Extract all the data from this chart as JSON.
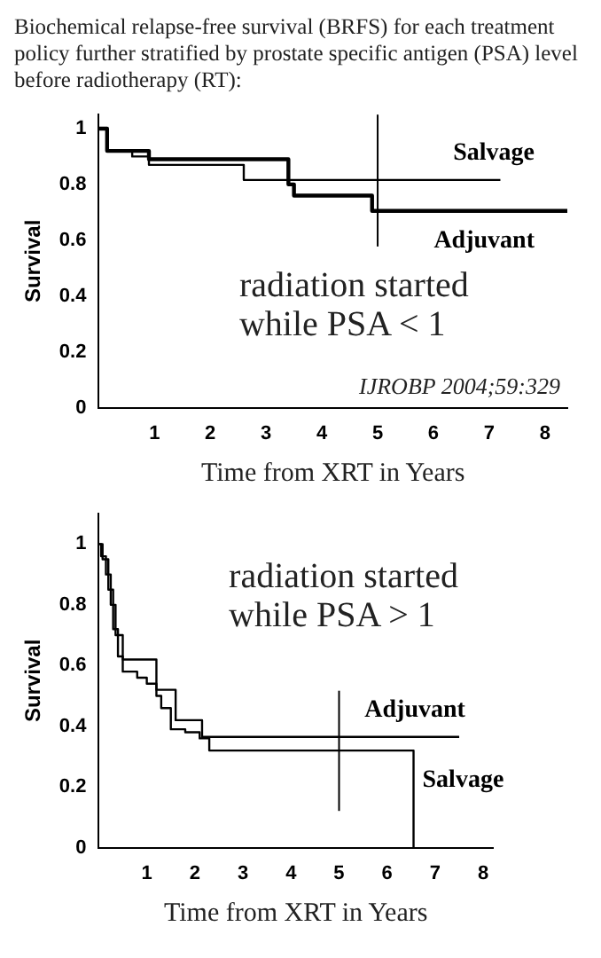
{
  "chart_data": [
    {
      "type": "step",
      "title": "Biochemical relapse-free survival (BRFS) for each treatment policy further stratified by prostate specific antigen (PSA) level before radiotherapy (RT):",
      "xlabel": "Time from XRT in Years",
      "ylabel": "Survival",
      "xlim": [
        0,
        8.4
      ],
      "ylim": [
        0,
        1.05
      ],
      "xticks": [
        1,
        2,
        3,
        4,
        5,
        6,
        7,
        8
      ],
      "yticks": [
        0,
        0.2,
        0.4,
        0.6,
        0.8,
        1
      ],
      "grid": false,
      "legend": false,
      "marker": "none",
      "series": [
        {
          "name": "Salvage",
          "color": "#000000",
          "x": [
            0,
            0.15,
            0.6,
            0.9,
            2.6,
            7.2
          ],
          "values": [
            1,
            0.92,
            0.9,
            0.87,
            0.816,
            0.816
          ]
        },
        {
          "name": "Adjuvant",
          "color": "#000000",
          "x": [
            0,
            0.15,
            0.9,
            3.4,
            3.5,
            4.9,
            8.4
          ],
          "values": [
            1,
            0.92,
            0.89,
            0.8,
            0.76,
            0.705,
            0.705
          ]
        }
      ],
      "ref_lines": [
        {
          "axis": "x",
          "value": 5,
          "color": "#000000"
        }
      ],
      "annotations": [
        "radiation started\nwhile PSA < 1",
        "IJROBP 2004;59:329"
      ]
    },
    {
      "type": "step",
      "xlabel": "Time from XRT in Years",
      "ylabel": "Survival",
      "xlim": [
        0,
        8.2
      ],
      "ylim": [
        0,
        1.1
      ],
      "xticks": [
        1,
        2,
        3,
        4,
        5,
        6,
        7,
        8
      ],
      "yticks": [
        0,
        0.2,
        0.4,
        0.6,
        0.8,
        1
      ],
      "grid": false,
      "legend": false,
      "marker": "none",
      "series": [
        {
          "name": "Adjuvant",
          "color": "#000000",
          "x": [
            0,
            0.05,
            0.15,
            0.25,
            0.35,
            0.5,
            1.2,
            1.6,
            2.15,
            7.5
          ],
          "values": [
            1,
            0.96,
            0.9,
            0.8,
            0.7,
            0.62,
            0.52,
            0.42,
            0.365,
            0.365
          ]
        },
        {
          "name": "Salvage",
          "color": "#000000",
          "x": [
            0,
            0.08,
            0.2,
            0.3,
            0.4,
            0.5,
            0.8,
            1.0,
            1.2,
            1.3,
            1.5,
            1.8,
            2.1,
            2.3,
            6.55,
            6.55
          ],
          "values": [
            1,
            0.95,
            0.85,
            0.72,
            0.63,
            0.58,
            0.56,
            0.54,
            0.5,
            0.46,
            0.39,
            0.38,
            0.36,
            0.32,
            0.32,
            0
          ]
        }
      ],
      "ref_lines": [
        {
          "axis": "x",
          "value": 5,
          "color": "#000000"
        }
      ],
      "annotations": [
        "radiation started\nwhile PSA > 1"
      ]
    }
  ]
}
